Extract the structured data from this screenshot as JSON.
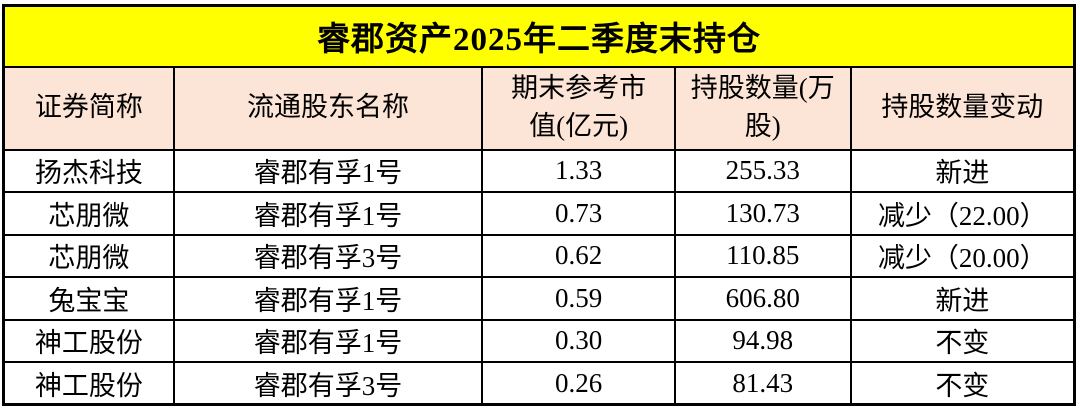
{
  "colors": {
    "title_bg": "#FFFF00",
    "header_bg": "#FCE4D6",
    "row_bg": "#FFFFFF",
    "border": "#000000",
    "text": "#000000"
  },
  "chart_data": {
    "type": "table",
    "title": "睿郡资产2025年二季度末持仓",
    "columns": [
      "证券简称",
      "流通股东名称",
      "期末参考市值(亿元)",
      "持股数量(万股)",
      "持股数量变动"
    ],
    "rows": [
      [
        "扬杰科技",
        "睿郡有孚1号",
        "1.33",
        "255.33",
        "新进"
      ],
      [
        "芯朋微",
        "睿郡有孚1号",
        "0.73",
        "130.73",
        "减少（22.00）"
      ],
      [
        "芯朋微",
        "睿郡有孚3号",
        "0.62",
        "110.85",
        "减少（20.00）"
      ],
      [
        "兔宝宝",
        "睿郡有孚1号",
        "0.59",
        "606.80",
        "新进"
      ],
      [
        "神工股份",
        "睿郡有孚1号",
        "0.30",
        "94.98",
        "不变"
      ],
      [
        "神工股份",
        "睿郡有孚3号",
        "0.26",
        "81.43",
        "不变"
      ]
    ]
  }
}
